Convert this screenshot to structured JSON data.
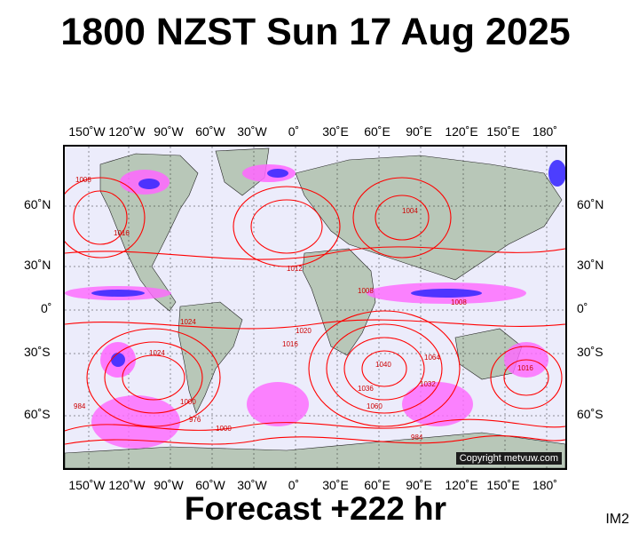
{
  "title": "1800 NZST Sun 17 Aug 2025",
  "footer": "Forecast +222 hr",
  "image_code": "IM2",
  "copyright": "Copyright metvuw.com",
  "lon_labels": [
    "150˚W",
    "120˚W",
    "90˚W",
    "60˚W",
    "30˚W",
    "0˚",
    "30˚E",
    "60˚E",
    "90˚E",
    "120˚E",
    "150˚E",
    "180˚"
  ],
  "lat_labels": [
    "60˚N",
    "30˚N",
    "0˚",
    "30˚S",
    "60˚S"
  ],
  "isobar_labels": [
    "1008",
    "1016",
    "1012",
    "1024",
    "1020",
    "1040",
    "1036",
    "1032",
    "1000",
    "1016",
    "984",
    "976",
    "1060",
    "1064",
    "1008",
    "984",
    "1000",
    "1008",
    "1016",
    "1004",
    "1024"
  ],
  "colors": {
    "isobar": "#ff0000",
    "land": "#b8c7b8",
    "ocean": "#ececfb",
    "rain_light": "#ff66ff",
    "rain_heavy": "#3b2bff"
  }
}
